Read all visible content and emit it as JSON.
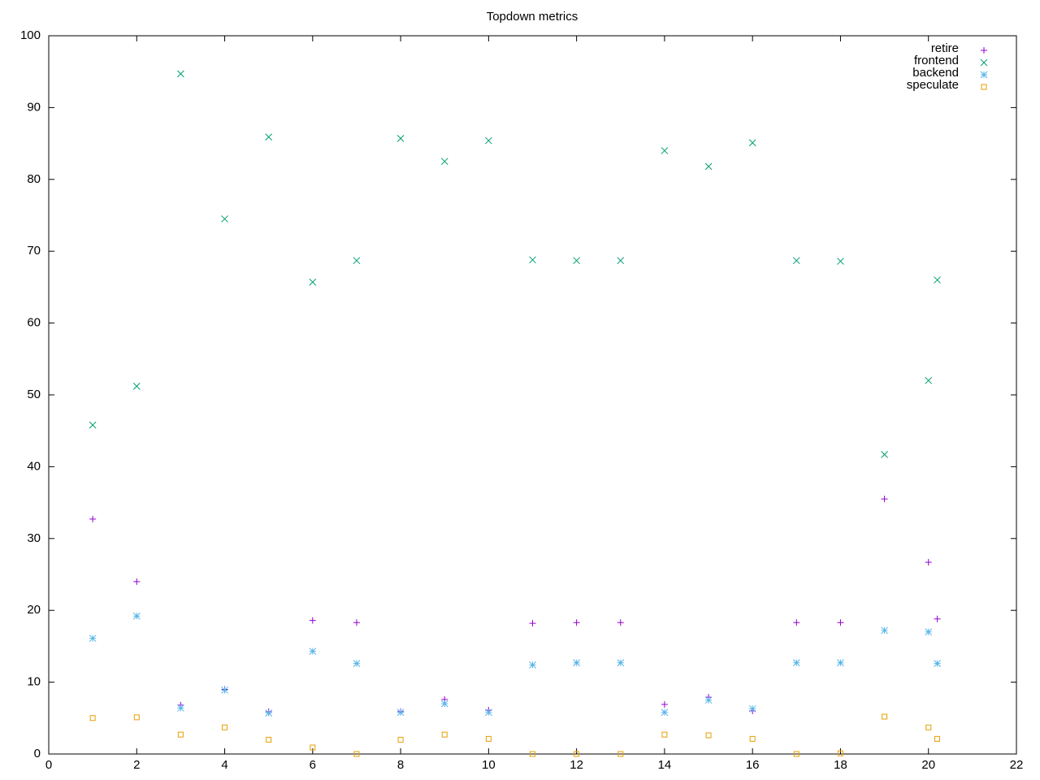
{
  "chart_data": {
    "type": "scatter",
    "title": "Topdown metrics",
    "x": [
      1,
      2,
      3,
      4,
      5,
      6,
      7,
      8,
      9,
      10,
      11,
      12,
      13,
      14,
      15,
      16,
      17,
      18,
      19,
      20,
      20.2
    ],
    "series": [
      {
        "name": "retire",
        "color": "#9400d3",
        "marker": "plus",
        "values": [
          32.7,
          24.0,
          6.8,
          9.0,
          5.9,
          18.6,
          18.3,
          5.9,
          7.6,
          6.1,
          18.2,
          18.3,
          18.3,
          6.9,
          7.9,
          6.0,
          18.3,
          18.3,
          35.5,
          26.7,
          18.8
        ]
      },
      {
        "name": "frontend",
        "color": "#009e73",
        "marker": "cross",
        "values": [
          45.8,
          51.2,
          94.7,
          74.5,
          85.9,
          65.7,
          68.7,
          85.7,
          82.5,
          85.4,
          68.8,
          68.7,
          68.7,
          84.0,
          81.8,
          85.1,
          68.7,
          68.6,
          41.7,
          52.0,
          66.0
        ]
      },
      {
        "name": "backend",
        "color": "#56b4e9",
        "marker": "star",
        "values": [
          16.1,
          19.2,
          6.4,
          8.9,
          5.7,
          14.3,
          12.6,
          5.8,
          7.0,
          5.8,
          12.4,
          12.7,
          12.7,
          5.8,
          7.5,
          6.3,
          12.7,
          12.7,
          17.2,
          17.0,
          12.6
        ]
      },
      {
        "name": "speculate",
        "color": "#e69f00",
        "marker": "square",
        "values": [
          5.0,
          5.1,
          2.7,
          3.7,
          2.0,
          0.9,
          0.0,
          2.0,
          2.7,
          2.1,
          0.0,
          0.0,
          0.0,
          2.7,
          2.6,
          2.1,
          0.0,
          0.1,
          5.2,
          3.7,
          2.1
        ]
      }
    ],
    "xlim": [
      0,
      22
    ],
    "xticks": [
      0,
      2,
      4,
      6,
      8,
      10,
      12,
      14,
      16,
      18,
      20,
      22
    ],
    "ylim": [
      0,
      100
    ],
    "yticks": [
      0,
      10,
      20,
      30,
      40,
      50,
      60,
      70,
      80,
      90,
      100
    ],
    "legend": "top-right"
  }
}
